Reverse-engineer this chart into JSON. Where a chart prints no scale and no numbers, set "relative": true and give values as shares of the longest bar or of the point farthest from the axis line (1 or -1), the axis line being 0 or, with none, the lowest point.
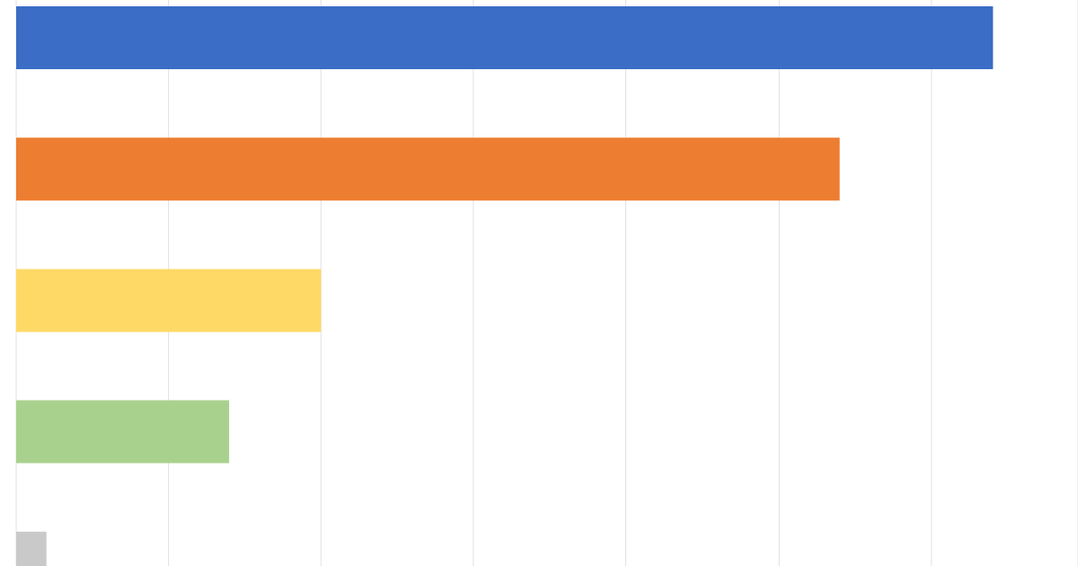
{
  "chart_data": {
    "type": "bar",
    "orientation": "horizontal",
    "relative": true,
    "categories": [
      null,
      null,
      null,
      null,
      null
    ],
    "values": [
      1,
      0.843,
      0.312,
      0.218,
      0.031
    ],
    "colors": [
      "#3b6cc6",
      "#ed7d31",
      "#ffd966",
      "#a9d18e",
      "#c9c9c9"
    ],
    "grid": "x"
  }
}
